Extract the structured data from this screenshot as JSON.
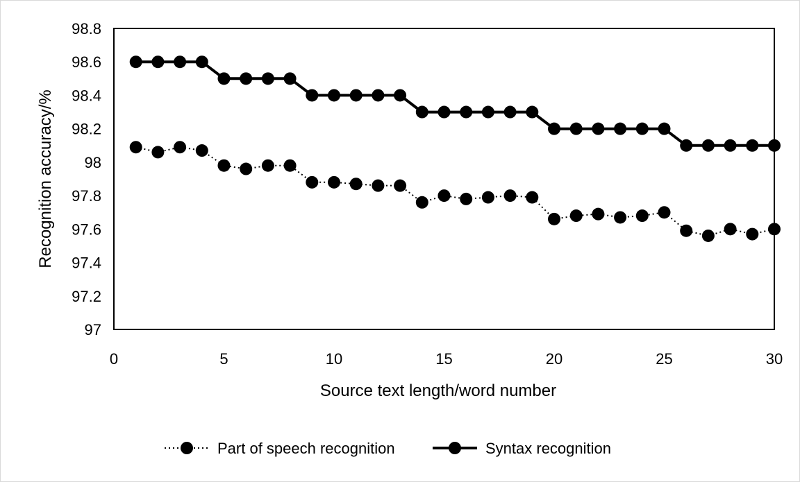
{
  "chart_data": {
    "type": "line",
    "xlabel": "Source text length/word number",
    "ylabel": "Recognition accuracy/%",
    "xlim": [
      0,
      30
    ],
    "ylim": [
      97,
      98.8
    ],
    "xticks": [
      0,
      5,
      10,
      15,
      20,
      25,
      30
    ],
    "yticks": [
      97,
      97.2,
      97.4,
      97.6,
      97.8,
      98,
      98.2,
      98.4,
      98.6,
      98.8
    ],
    "grid": false,
    "legend_position": "bottom",
    "x": [
      1,
      2,
      3,
      4,
      5,
      6,
      7,
      8,
      9,
      10,
      11,
      12,
      13,
      14,
      15,
      16,
      17,
      18,
      19,
      20,
      21,
      22,
      23,
      24,
      25,
      26,
      27,
      28,
      29,
      30
    ],
    "series": [
      {
        "name": "Part of speech recognition",
        "line_style": "dotted",
        "color": "#000000",
        "values": [
          98.09,
          98.06,
          98.09,
          98.07,
          97.98,
          97.96,
          97.98,
          97.98,
          97.88,
          97.88,
          97.87,
          97.86,
          97.86,
          97.76,
          97.8,
          97.78,
          97.79,
          97.8,
          97.79,
          97.66,
          97.68,
          97.69,
          97.67,
          97.68,
          97.7,
          97.59,
          97.56,
          97.6,
          97.57,
          97.6
        ]
      },
      {
        "name": "Syntax recognition",
        "line_style": "solid",
        "color": "#000000",
        "values": [
          98.6,
          98.6,
          98.6,
          98.6,
          98.5,
          98.5,
          98.5,
          98.5,
          98.4,
          98.4,
          98.4,
          98.4,
          98.4,
          98.3,
          98.3,
          98.3,
          98.3,
          98.3,
          98.3,
          98.2,
          98.2,
          98.2,
          98.2,
          98.2,
          98.2,
          98.1,
          98.1,
          98.1,
          98.1,
          98.1
        ]
      }
    ]
  }
}
